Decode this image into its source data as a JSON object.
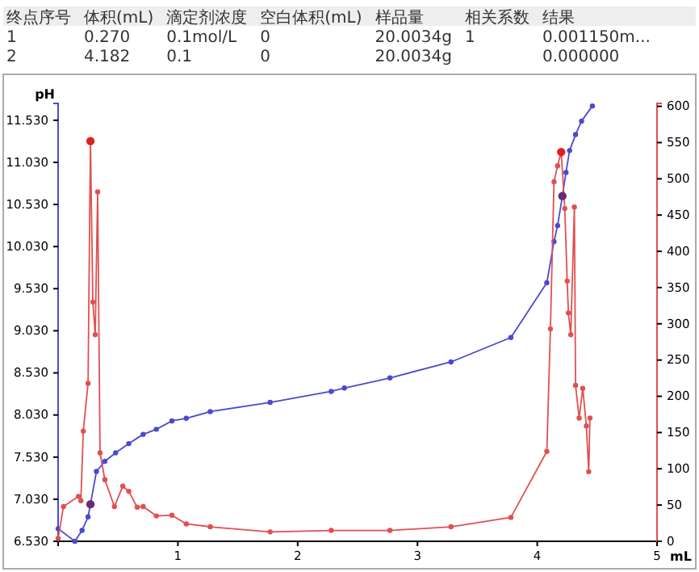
{
  "chart_data": {
    "type": "line",
    "annotations": [
      "终点序号\t体积(mL)\t滴定剂浓度\t空白体积(mL)\t样品量\t相关系数\t结果",
      "1\t0.270\t0.1mol/L\t0\t20.0034g\t1\t0.001150m...",
      "2\t4.182\t0.1\t0\t20.0034g\t\t0.000000"
    ],
    "xlabel": "mL",
    "ylabel": "pH",
    "xlim": [
      0,
      5
    ],
    "xticks": [
      1,
      2,
      3,
      4,
      5
    ],
    "ylim": [
      6.53,
      11.73
    ],
    "yticks": [
      {
        "value": 6.53,
        "label": "6.530"
      },
      {
        "value": 7.03,
        "label": "7.030"
      },
      {
        "value": 7.53,
        "label": "7.530"
      },
      {
        "value": 8.03,
        "label": "8.030"
      },
      {
        "value": 8.53,
        "label": "8.530"
      },
      {
        "value": 9.03,
        "label": "9.030"
      },
      {
        "value": 9.53,
        "label": "9.530"
      },
      {
        "value": 10.03,
        "label": "10.030"
      },
      {
        "value": 10.53,
        "label": "10.530"
      },
      {
        "value": 11.03,
        "label": "11.030"
      },
      {
        "value": 11.53,
        "label": "11.530"
      }
    ],
    "y2lim": [
      0,
      604
    ],
    "y2ticks": [
      0,
      50,
      100,
      150,
      200,
      250,
      300,
      350,
      400,
      450,
      500,
      550,
      600
    ],
    "grid": false,
    "marker": "circle",
    "line_style": "solid",
    "series": [
      {
        "color": "#4a4ad0",
        "x": [
          0,
          0.14,
          0.2,
          0.25,
          0.27,
          0.32,
          0.39,
          0.48,
          0.59,
          0.71,
          0.82,
          0.95,
          1.07,
          1.27,
          1.77,
          2.28,
          2.39,
          2.77,
          3.28,
          3.78,
          4.08,
          4.14,
          4.17,
          4.21,
          4.24,
          4.27,
          4.32,
          4.37,
          4.46
        ],
        "values": [
          6.68,
          6.53,
          6.66,
          6.82,
          6.97,
          7.36,
          7.48,
          7.58,
          7.69,
          7.8,
          7.86,
          7.96,
          7.99,
          8.07,
          8.18,
          8.31,
          8.35,
          8.47,
          8.66,
          8.95,
          9.6,
          10.09,
          10.28,
          10.63,
          10.91,
          11.17,
          11.36,
          11.52,
          11.7
        ]
      },
      {
        "color": "#e05050",
        "axis": "y2",
        "x": [
          0,
          0.045,
          0.17,
          0.19,
          0.21,
          0.25,
          0.27,
          0.29,
          0.31,
          0.33,
          0.35,
          0.39,
          0.47,
          0.54,
          0.59,
          0.66,
          0.71,
          0.82,
          0.95,
          1.07,
          1.27,
          1.77,
          2.28,
          2.77,
          3.28,
          3.78,
          4.08,
          4.11,
          4.14,
          4.17,
          4.2,
          4.23,
          4.25,
          4.26,
          4.28,
          4.31,
          4.32,
          4.35,
          4.38,
          4.41,
          4.43,
          4.44
        ],
        "values": [
          4,
          48,
          62,
          56,
          152,
          218,
          552,
          330,
          285,
          482,
          122,
          85,
          48,
          76,
          69,
          47,
          48,
          35,
          36,
          24,
          20,
          13,
          15,
          15,
          20,
          33,
          124,
          293,
          496,
          518,
          537,
          459,
          359,
          315,
          285,
          461,
          215,
          170,
          211,
          159,
          96,
          170
        ]
      },
      {
        "type": "scatter",
        "color": "#6a2a7a",
        "x": [
          0.27,
          4.21
        ],
        "values": [
          6.97,
          10.63
        ]
      },
      {
        "type": "scatter",
        "color": "#e02020",
        "axis": "y2",
        "x": [
          0.27,
          4.2
        ],
        "values": [
          552,
          537
        ]
      }
    ]
  }
}
